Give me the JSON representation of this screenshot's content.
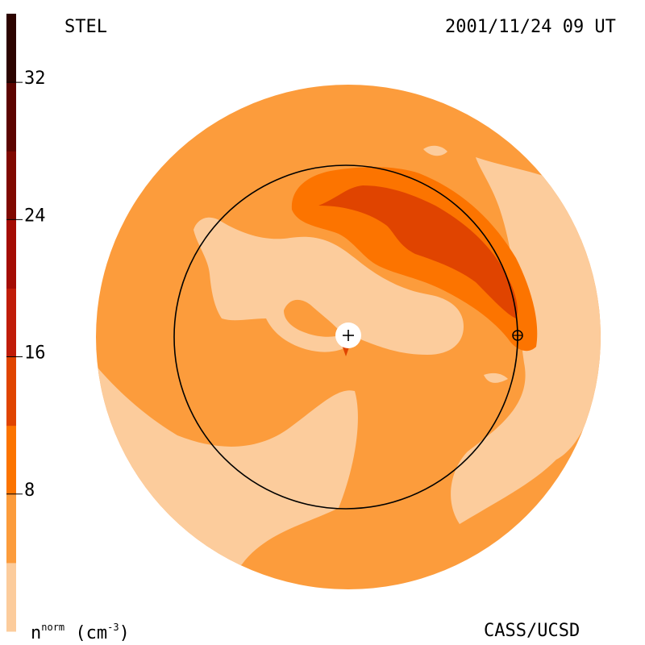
{
  "chart_data": {
    "type": "heatmap",
    "title": "STEL",
    "timestamp": "2001/11/24 09 UT",
    "credit": "CASS/UCSD",
    "colorbar": {
      "label_main": "n",
      "label_sup": "norm",
      "label_unit": "(cm",
      "label_unit_sup": "-3",
      "label_close": ")",
      "min": 0,
      "max": 36,
      "ticks": [
        8,
        16,
        24,
        32
      ],
      "levels": [
        {
          "from": 0,
          "to": 4,
          "color": "#fccc9c"
        },
        {
          "from": 4,
          "to": 8,
          "color": "#fc9c3c"
        },
        {
          "from": 8,
          "to": 12,
          "color": "#fc7400"
        },
        {
          "from": 12,
          "to": 16,
          "color": "#e04400"
        },
        {
          "from": 16,
          "to": 20,
          "color": "#c01c08"
        },
        {
          "from": 20,
          "to": 24,
          "color": "#a40c04"
        },
        {
          "from": 24,
          "to": 28,
          "color": "#800800"
        },
        {
          "from": 28,
          "to": 32,
          "color": "#5c0400"
        },
        {
          "from": 32,
          "to": 36,
          "color": "#2c0400"
        }
      ]
    },
    "markers": [
      {
        "name": "sun",
        "symbol": "+"
      },
      {
        "name": "earth",
        "symbol": "⊕"
      }
    ]
  }
}
